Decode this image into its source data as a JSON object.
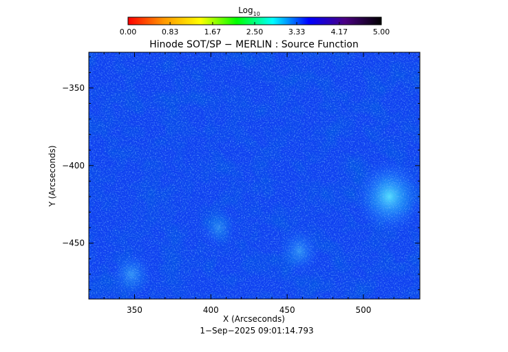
{
  "chart_data": {
    "type": "heatmap",
    "title": "Hinode SOT/SP − MERLIN : Source Function",
    "colorbar": {
      "label": "Log",
      "label_subscript": "10",
      "range": [
        0.0,
        5.0
      ],
      "ticks": [
        "0.00",
        "0.83",
        "1.67",
        "2.50",
        "3.33",
        "4.17",
        "5.00"
      ],
      "colormap": [
        "#ff0000",
        "#ff9900",
        "#ffff00",
        "#00ff00",
        "#00ffff",
        "#0000ff",
        "#4b0082",
        "#000000"
      ]
    },
    "xlabel": "X (Arcseconds)",
    "ylabel": "Y (Arcseconds)",
    "xlim": [
      320,
      537
    ],
    "ylim": [
      -486,
      -327
    ],
    "x_ticks": [
      350,
      400,
      450,
      500
    ],
    "y_ticks": [
      -350,
      -400,
      -450
    ],
    "x_tick_labels": [
      "350",
      "400",
      "450",
      "500"
    ],
    "y_tick_labels": [
      "−350",
      "−400",
      "−450"
    ],
    "field_value_typical": 4.3,
    "bright_regions": [
      {
        "x": 517,
        "y": -420,
        "value": 3.3
      },
      {
        "x": 348,
        "y": -470,
        "value": 3.8
      },
      {
        "x": 458,
        "y": -455,
        "value": 3.8
      },
      {
        "x": 405,
        "y": -440,
        "value": 3.9
      }
    ],
    "timestamp": "1−Sep−2025 09:01:14.793"
  }
}
